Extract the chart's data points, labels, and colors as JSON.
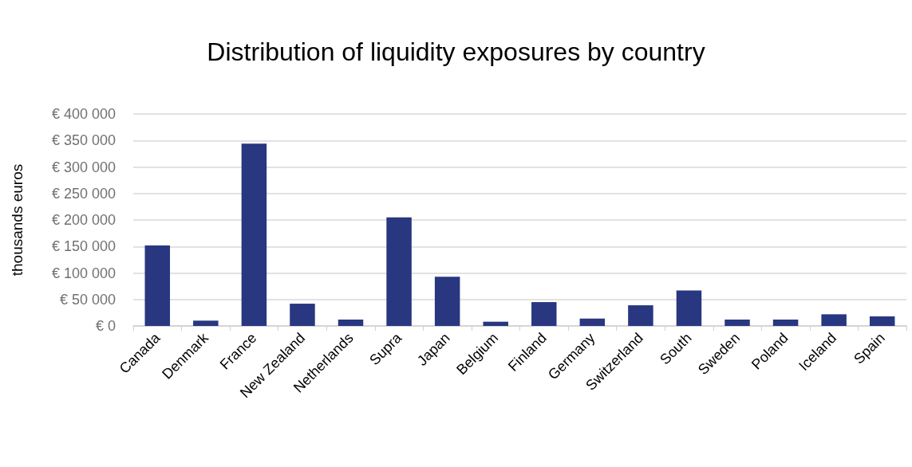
{
  "chart_data": {
    "type": "bar",
    "title": "Distribution of liquidity exposures by country",
    "ylabel": "thousands euros",
    "categories": [
      "Canada",
      "Denmark",
      "France",
      "New Zealand",
      "Netherlands",
      "Supra",
      "Japan",
      "Belgium",
      "Finland",
      "Germany",
      "Switzerland",
      "South",
      "Sweden",
      "Poland",
      "Iceland",
      "Spain"
    ],
    "values": [
      152000,
      10000,
      344000,
      42000,
      12000,
      205000,
      93000,
      8000,
      45000,
      14000,
      39000,
      67000,
      12000,
      12000,
      22000,
      18000
    ],
    "color": "#283780",
    "ylim": [
      0,
      400000
    ],
    "yticks": [
      {
        "value": 0,
        "label": "€ 0"
      },
      {
        "value": 50000,
        "label": "€ 50 000"
      },
      {
        "value": 100000,
        "label": "€ 100 000"
      },
      {
        "value": 150000,
        "label": "€ 150 000"
      },
      {
        "value": 200000,
        "label": "€ 200 000"
      },
      {
        "value": 250000,
        "label": "€ 250 000"
      },
      {
        "value": 300000,
        "label": "€ 300 000"
      },
      {
        "value": 350000,
        "label": "€ 350 000"
      },
      {
        "value": 400000,
        "label": "€ 400 000"
      }
    ],
    "grid": "y"
  }
}
